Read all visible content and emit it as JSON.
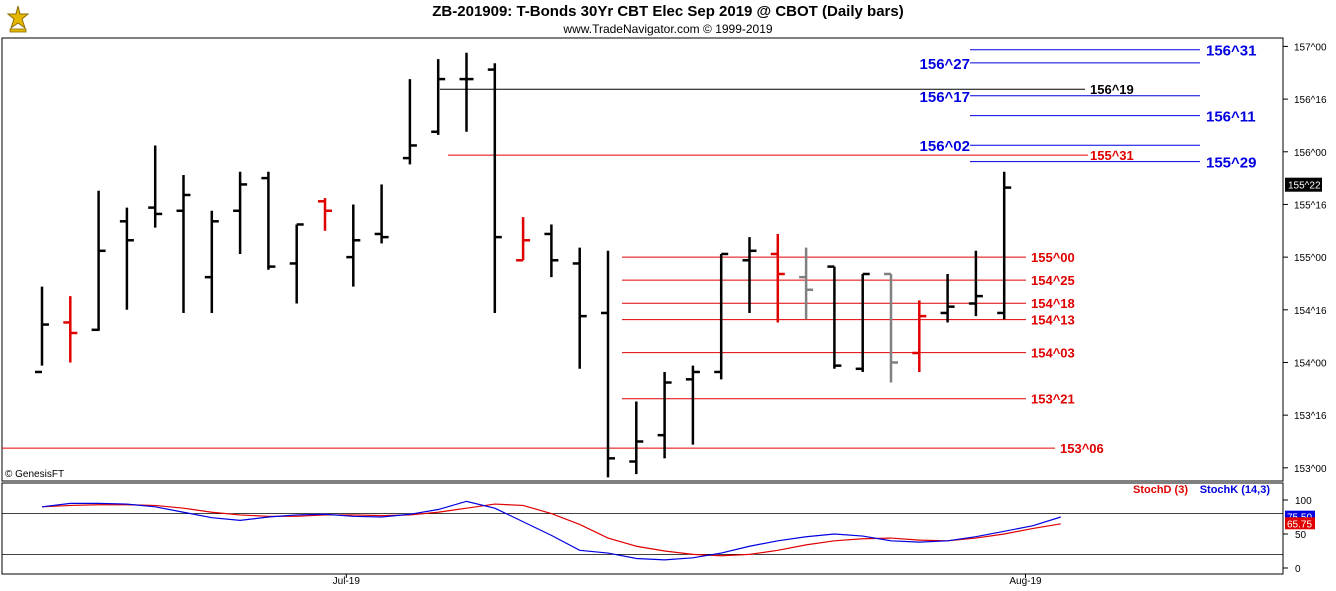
{
  "header": {
    "title": "ZB-201909:  T-Bonds 30Yr CBT Elec Sep 2019 @ CBOT  (Daily bars)",
    "subtitle": "www.TradeNavigator.com © 1999-2019",
    "copyright": "© GenesisFT"
  },
  "colors": {
    "bar_normal": "#000000",
    "bar_red": "#e00000",
    "bar_gray": "#808080",
    "level_red": "#e00000",
    "level_blue": "#0000e0",
    "level_black": "#000000",
    "stoch_d": "#e00000",
    "stoch_k": "#0000e0",
    "last_price_box": "#000000",
    "logo": "#e6b800"
  },
  "chart_data": [
    {
      "type": "ohlc",
      "title": "ZB-201909:  T-Bonds 30Yr CBT Elec Sep 2019 @ CBOT  (Daily bars)",
      "price_unit": "32nds",
      "y_ticks": [
        "153^00",
        "153^16",
        "154^00",
        "154^16",
        "155^00",
        "155^16",
        "156^00",
        "156^16",
        "157^00"
      ],
      "x_ticks": [
        "Jul-19",
        "Aug-19"
      ],
      "last_price": "155^22",
      "bars": [
        {
          "o": 153.91,
          "h": 154.72,
          "l": 153.97,
          "c": 154.36,
          "color": "black"
        },
        {
          "o": 154.38,
          "h": 154.63,
          "l": 154.0,
          "c": 154.28,
          "color": "red"
        },
        {
          "o": 154.31,
          "h": 155.63,
          "l": 154.3,
          "c": 155.06,
          "color": "black"
        },
        {
          "o": 155.34,
          "h": 155.47,
          "l": 154.5,
          "c": 155.16,
          "color": "black"
        },
        {
          "o": 155.47,
          "h": 156.06,
          "l": 155.28,
          "c": 155.41,
          "color": "black"
        },
        {
          "o": 155.44,
          "h": 155.78,
          "l": 154.47,
          "c": 155.59,
          "color": "black"
        },
        {
          "o": 154.81,
          "h": 155.44,
          "l": 154.47,
          "c": 155.34,
          "color": "black"
        },
        {
          "o": 155.44,
          "h": 155.81,
          "l": 155.03,
          "c": 155.69,
          "color": "black"
        },
        {
          "o": 155.75,
          "h": 155.81,
          "l": 154.88,
          "c": 154.91,
          "color": "black"
        },
        {
          "o": 154.94,
          "h": 155.31,
          "l": 154.56,
          "c": 155.31,
          "color": "black"
        },
        {
          "o": 155.53,
          "h": 155.56,
          "l": 155.25,
          "c": 155.44,
          "color": "red"
        },
        {
          "o": 155.0,
          "h": 155.5,
          "l": 154.72,
          "c": 155.16,
          "color": "black"
        },
        {
          "o": 155.22,
          "h": 155.69,
          "l": 155.13,
          "c": 155.19,
          "color": "black"
        },
        {
          "o": 155.94,
          "h": 156.69,
          "l": 155.88,
          "c": 156.06,
          "color": "black"
        },
        {
          "o": 156.19,
          "h": 156.88,
          "l": 156.16,
          "c": 156.69,
          "color": "black"
        },
        {
          "o": 156.69,
          "h": 156.94,
          "l": 156.19,
          "c": 156.69,
          "color": "black"
        },
        {
          "o": 156.78,
          "h": 156.84,
          "l": 154.47,
          "c": 155.19,
          "color": "black"
        },
        {
          "o": 154.97,
          "h": 155.38,
          "l": 154.97,
          "c": 155.16,
          "color": "red"
        },
        {
          "o": 155.22,
          "h": 155.31,
          "l": 154.81,
          "c": 154.97,
          "color": "black"
        },
        {
          "o": 154.94,
          "h": 155.09,
          "l": 153.94,
          "c": 154.44,
          "color": "black"
        },
        {
          "o": 154.47,
          "h": 155.06,
          "l": 152.91,
          "c": 153.09,
          "color": "black"
        },
        {
          "o": 153.06,
          "h": 153.63,
          "l": 152.94,
          "c": 153.25,
          "color": "black"
        },
        {
          "o": 153.31,
          "h": 153.91,
          "l": 153.09,
          "c": 153.81,
          "color": "black"
        },
        {
          "o": 153.84,
          "h": 153.97,
          "l": 153.22,
          "c": 153.91,
          "color": "black"
        },
        {
          "o": 153.91,
          "h": 155.03,
          "l": 153.84,
          "c": 155.03,
          "color": "black"
        },
        {
          "o": 154.97,
          "h": 155.19,
          "l": 154.47,
          "c": 155.06,
          "color": "black"
        },
        {
          "o": 155.03,
          "h": 155.22,
          "l": 154.38,
          "c": 154.84,
          "color": "red"
        },
        {
          "o": 154.81,
          "h": 155.09,
          "l": 154.41,
          "c": 154.69,
          "color": "gray"
        },
        {
          "o": 154.91,
          "h": 154.91,
          "l": 153.94,
          "c": 153.97,
          "color": "black"
        },
        {
          "o": 153.94,
          "h": 154.84,
          "l": 153.91,
          "c": 154.84,
          "color": "black"
        },
        {
          "o": 154.84,
          "h": 154.84,
          "l": 153.81,
          "c": 154.0,
          "color": "gray"
        },
        {
          "o": 154.09,
          "h": 154.59,
          "l": 153.91,
          "c": 154.44,
          "color": "red"
        },
        {
          "o": 154.47,
          "h": 154.84,
          "l": 154.38,
          "c": 154.53,
          "color": "black"
        },
        {
          "o": 154.56,
          "h": 155.06,
          "l": 154.44,
          "c": 154.63,
          "color": "black"
        },
        {
          "o": 154.47,
          "h": 155.81,
          "l": 154.41,
          "c": 155.66,
          "color": "black"
        }
      ],
      "levels": [
        {
          "label": "156^31",
          "color": "blue"
        },
        {
          "label": "156^27",
          "color": "blue"
        },
        {
          "label": "156^19",
          "color": "black"
        },
        {
          "label": "156^17",
          "color": "blue"
        },
        {
          "label": "156^11",
          "color": "blue"
        },
        {
          "label": "156^02",
          "color": "blue"
        },
        {
          "label": "155^31",
          "color": "red"
        },
        {
          "label": "155^29",
          "color": "blue"
        },
        {
          "label": "155^00",
          "color": "red"
        },
        {
          "label": "154^25",
          "color": "red"
        },
        {
          "label": "154^18",
          "color": "red"
        },
        {
          "label": "154^13",
          "color": "red"
        },
        {
          "label": "154^03",
          "color": "red"
        },
        {
          "label": "153^21",
          "color": "red"
        },
        {
          "label": "153^06",
          "color": "red"
        }
      ]
    },
    {
      "type": "line",
      "ylim": [
        0,
        100
      ],
      "y_ticks": [
        0,
        50,
        100
      ],
      "current_values": [
        "75.50",
        "65.75"
      ],
      "series": [
        {
          "name": "StochD (3)",
          "values": [
            90,
            92,
            93,
            93,
            92,
            88,
            82,
            78,
            76,
            76,
            78,
            78,
            77,
            78,
            82,
            88,
            94,
            92,
            80,
            64,
            44,
            32,
            25,
            20,
            18,
            20,
            26,
            34,
            40,
            43,
            44,
            41,
            40,
            44,
            50,
            58,
            65
          ]
        },
        {
          "name": "StochK (14,3)",
          "values": [
            90,
            95,
            95,
            94,
            90,
            82,
            74,
            70,
            75,
            78,
            79,
            76,
            75,
            79,
            86,
            98,
            88,
            68,
            48,
            26,
            22,
            14,
            12,
            15,
            22,
            32,
            40,
            46,
            50,
            47,
            40,
            38,
            40,
            46,
            54,
            62,
            75
          ]
        }
      ]
    }
  ]
}
